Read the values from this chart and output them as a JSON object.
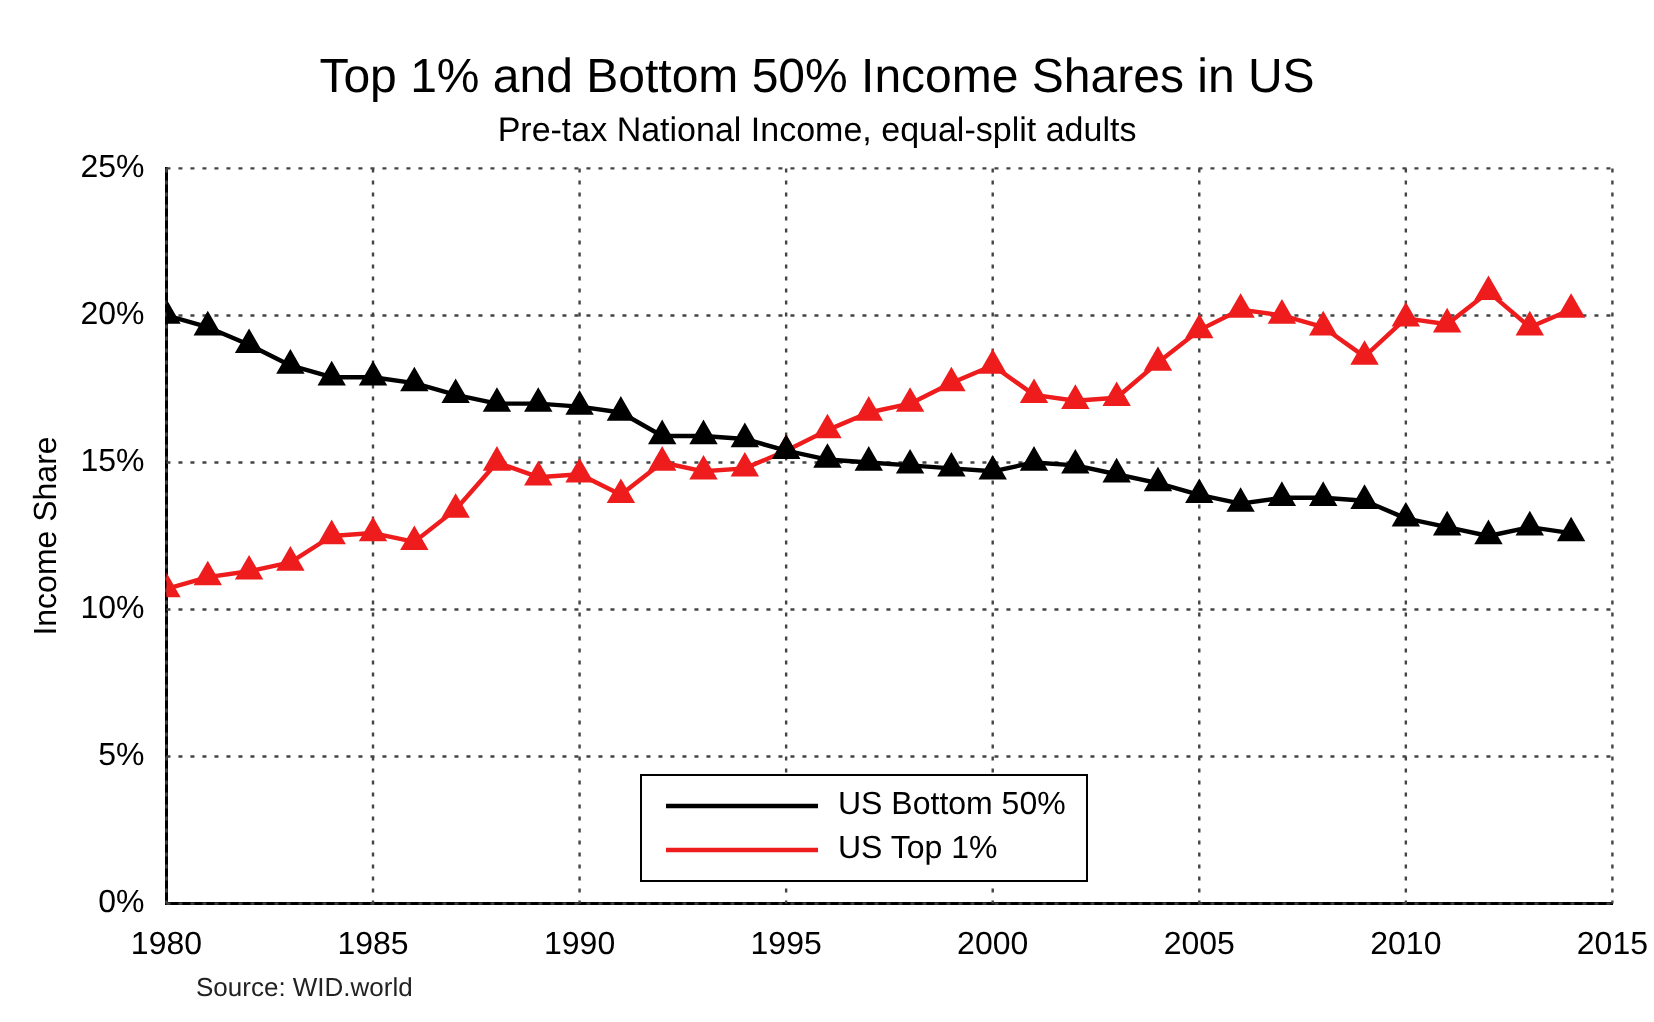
{
  "chart_data": {
    "type": "line",
    "title": "Top 1% and Bottom 50% Income Shares in US",
    "subtitle": "Pre-tax National Income, equal-split adults",
    "ylabel": "Income Share",
    "annotations": [
      "Source: WID.world"
    ],
    "x": [
      1980,
      1981,
      1982,
      1983,
      1984,
      1985,
      1986,
      1987,
      1988,
      1989,
      1990,
      1991,
      1992,
      1993,
      1994,
      1995,
      1996,
      1997,
      1998,
      1999,
      2000,
      2001,
      2002,
      2003,
      2004,
      2005,
      2006,
      2007,
      2008,
      2009,
      2010,
      2011,
      2012,
      2013,
      2014
    ],
    "series": [
      {
        "name": "US Bottom 50%",
        "color": "#000000",
        "values": [
          20.0,
          19.6,
          19.0,
          18.3,
          17.9,
          17.9,
          17.7,
          17.3,
          17.0,
          17.0,
          16.9,
          16.7,
          15.9,
          15.9,
          15.8,
          15.4,
          15.1,
          15.0,
          14.9,
          14.8,
          14.7,
          15.0,
          14.9,
          14.6,
          14.3,
          13.9,
          13.6,
          13.8,
          13.8,
          13.7,
          13.1,
          12.8,
          12.5,
          12.8,
          12.6
        ]
      },
      {
        "name": "US Top 1%",
        "color": "#ee1c1c",
        "values": [
          10.7,
          11.1,
          11.3,
          11.6,
          12.5,
          12.6,
          12.3,
          13.4,
          15.0,
          14.5,
          14.6,
          13.9,
          15.0,
          14.7,
          14.8,
          15.4,
          16.1,
          16.7,
          17.0,
          17.7,
          18.3,
          17.3,
          17.1,
          17.2,
          18.4,
          19.5,
          20.2,
          20.0,
          19.6,
          18.6,
          19.9,
          19.7,
          20.8,
          19.6,
          20.2
        ]
      }
    ],
    "xlim": [
      1980,
      2015
    ],
    "xticks": [
      1980,
      1985,
      1990,
      1995,
      2000,
      2005,
      2010,
      2015
    ],
    "ylim": [
      0,
      25
    ],
    "yticks": [
      {
        "value": 0,
        "label": "0%"
      },
      {
        "value": 5,
        "label": "5%"
      },
      {
        "value": 10,
        "label": "10%"
      },
      {
        "value": 15,
        "label": "15%"
      },
      {
        "value": 20,
        "label": "20%"
      },
      {
        "value": 25,
        "label": "25%"
      }
    ],
    "grid": true,
    "legend": "bottom",
    "marker": "triangle",
    "line_style": "solid"
  }
}
